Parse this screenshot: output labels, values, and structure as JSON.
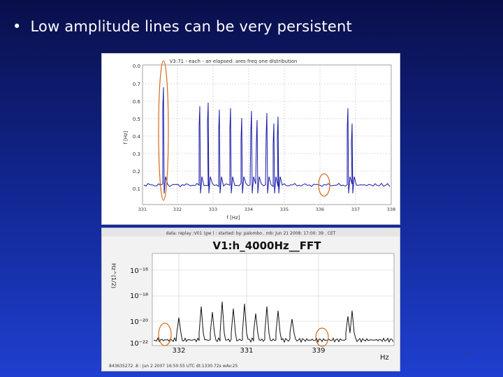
{
  "slide": {
    "bullet": "•",
    "text": "Low amplitude lines can be very persistent",
    "page_number": "5"
  },
  "top_plot": {
    "title": "V3:71 - each - an elapsed: ares freq one distribution",
    "ylabel": "f [Hz]",
    "xlabel": "f [Hz]",
    "y_ticks": [
      "0.0",
      "0.7",
      "0.6",
      "0.5",
      "0.4",
      "0.3",
      "0.2",
      "0.1"
    ],
    "x_ticks": [
      "331",
      "332",
      "333",
      "334",
      "335",
      "336",
      "337",
      "338"
    ],
    "colors": {
      "trace": "#1a1aa8",
      "highlight": "#d36a1a"
    }
  },
  "bottom_plot": {
    "header_text": "data: replay :V01 (gw ) : started: by: palombo . mb: Jun 21 2008: 17:00: 39 . CET",
    "title": "V1:h_4000Hz__FFT",
    "ylabel": "Hz^(1/2)",
    "xlabel": "Hz",
    "y_ticks": [
      "10⁻¹⁶",
      "10⁻¹⁸",
      "10⁻²⁰",
      "10⁻²²"
    ],
    "x_ticks": [
      "332",
      "331",
      "339"
    ],
    "footer_text": "843635272 .8 : Jun 2 2007 16:50:55 UTC dt:1330.72s wAv:25",
    "colors": {
      "trace": "#111111",
      "highlight": "#d36a1a"
    }
  }
}
